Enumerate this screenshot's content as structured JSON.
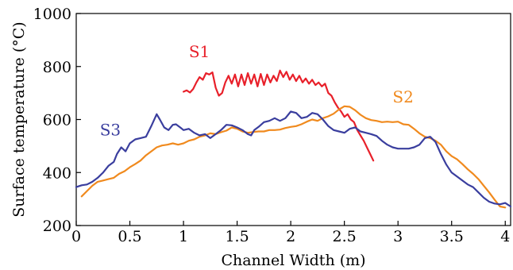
{
  "chart_data": {
    "type": "line",
    "xlabel": "Channel Width (m)",
    "ylabel": "Surface temperature (°C)",
    "xlim": [
      0,
      4.05
    ],
    "ylim": [
      200,
      1000
    ],
    "xticks": [
      0,
      0.5,
      1,
      1.5,
      2,
      2.5,
      3,
      3.5,
      4
    ],
    "xtick_labels": [
      "0",
      "0.5",
      "1",
      "1.5",
      "2",
      "2.5",
      "3",
      "3.5",
      "4"
    ],
    "yticks": [
      200,
      400,
      600,
      800,
      1000
    ],
    "ytick_labels": [
      "200",
      "400",
      "600",
      "800",
      "1000"
    ],
    "grid": false,
    "legend": "labels placed next to each series",
    "series": [
      {
        "name": "S1",
        "color": "#e8202a",
        "label_anchor": [
          1.05,
          835
        ],
        "points": [
          [
            1.0,
            705
          ],
          [
            1.03,
            710
          ],
          [
            1.06,
            702
          ],
          [
            1.09,
            715
          ],
          [
            1.12,
            740
          ],
          [
            1.15,
            760
          ],
          [
            1.18,
            750
          ],
          [
            1.21,
            775
          ],
          [
            1.24,
            770
          ],
          [
            1.27,
            778
          ],
          [
            1.3,
            720
          ],
          [
            1.33,
            690
          ],
          [
            1.36,
            700
          ],
          [
            1.39,
            740
          ],
          [
            1.42,
            765
          ],
          [
            1.45,
            735
          ],
          [
            1.48,
            770
          ],
          [
            1.51,
            725
          ],
          [
            1.54,
            770
          ],
          [
            1.57,
            730
          ],
          [
            1.6,
            775
          ],
          [
            1.63,
            735
          ],
          [
            1.66,
            770
          ],
          [
            1.69,
            725
          ],
          [
            1.72,
            772
          ],
          [
            1.75,
            730
          ],
          [
            1.78,
            770
          ],
          [
            1.81,
            740
          ],
          [
            1.84,
            765
          ],
          [
            1.87,
            745
          ],
          [
            1.9,
            785
          ],
          [
            1.93,
            760
          ],
          [
            1.96,
            780
          ],
          [
            1.99,
            750
          ],
          [
            2.02,
            770
          ],
          [
            2.05,
            745
          ],
          [
            2.08,
            765
          ],
          [
            2.11,
            740
          ],
          [
            2.14,
            755
          ],
          [
            2.17,
            735
          ],
          [
            2.2,
            750
          ],
          [
            2.23,
            730
          ],
          [
            2.26,
            740
          ],
          [
            2.29,
            725
          ],
          [
            2.32,
            735
          ],
          [
            2.35,
            700
          ],
          [
            2.38,
            690
          ],
          [
            2.41,
            665
          ],
          [
            2.44,
            645
          ],
          [
            2.47,
            630
          ],
          [
            2.5,
            610
          ],
          [
            2.53,
            620
          ],
          [
            2.56,
            600
          ],
          [
            2.59,
            590
          ],
          [
            2.62,
            560
          ],
          [
            2.65,
            540
          ],
          [
            2.68,
            520
          ],
          [
            2.71,
            495
          ],
          [
            2.74,
            470
          ],
          [
            2.77,
            445
          ]
        ]
      },
      {
        "name": "S2",
        "color": "#f08a1e",
        "label_anchor": [
          2.95,
          665
        ],
        "points": [
          [
            0.05,
            310
          ],
          [
            0.1,
            330
          ],
          [
            0.15,
            350
          ],
          [
            0.2,
            365
          ],
          [
            0.25,
            370
          ],
          [
            0.3,
            375
          ],
          [
            0.35,
            380
          ],
          [
            0.4,
            395
          ],
          [
            0.45,
            405
          ],
          [
            0.5,
            420
          ],
          [
            0.55,
            432
          ],
          [
            0.6,
            445
          ],
          [
            0.65,
            465
          ],
          [
            0.7,
            480
          ],
          [
            0.75,
            495
          ],
          [
            0.8,
            502
          ],
          [
            0.85,
            505
          ],
          [
            0.9,
            510
          ],
          [
            0.95,
            505
          ],
          [
            1.0,
            510
          ],
          [
            1.05,
            520
          ],
          [
            1.1,
            525
          ],
          [
            1.15,
            535
          ],
          [
            1.2,
            540
          ],
          [
            1.25,
            548
          ],
          [
            1.3,
            545
          ],
          [
            1.35,
            552
          ],
          [
            1.4,
            558
          ],
          [
            1.45,
            570
          ],
          [
            1.5,
            565
          ],
          [
            1.55,
            555
          ],
          [
            1.6,
            550
          ],
          [
            1.65,
            553
          ],
          [
            1.7,
            555
          ],
          [
            1.75,
            555
          ],
          [
            1.8,
            560
          ],
          [
            1.85,
            560
          ],
          [
            1.9,
            562
          ],
          [
            1.95,
            568
          ],
          [
            2.0,
            572
          ],
          [
            2.05,
            575
          ],
          [
            2.1,
            582
          ],
          [
            2.15,
            592
          ],
          [
            2.2,
            600
          ],
          [
            2.25,
            595
          ],
          [
            2.3,
            605
          ],
          [
            2.35,
            612
          ],
          [
            2.4,
            622
          ],
          [
            2.45,
            638
          ],
          [
            2.5,
            650
          ],
          [
            2.55,
            648
          ],
          [
            2.6,
            635
          ],
          [
            2.65,
            618
          ],
          [
            2.7,
            605
          ],
          [
            2.75,
            598
          ],
          [
            2.8,
            595
          ],
          [
            2.85,
            590
          ],
          [
            2.9,
            592
          ],
          [
            2.95,
            590
          ],
          [
            3.0,
            592
          ],
          [
            3.05,
            582
          ],
          [
            3.1,
            580
          ],
          [
            3.15,
            565
          ],
          [
            3.2,
            548
          ],
          [
            3.25,
            535
          ],
          [
            3.3,
            530
          ],
          [
            3.35,
            520
          ],
          [
            3.4,
            505
          ],
          [
            3.45,
            480
          ],
          [
            3.5,
            462
          ],
          [
            3.55,
            450
          ],
          [
            3.6,
            432
          ],
          [
            3.65,
            412
          ],
          [
            3.7,
            395
          ],
          [
            3.75,
            375
          ],
          [
            3.8,
            350
          ],
          [
            3.85,
            325
          ],
          [
            3.9,
            298
          ],
          [
            3.95,
            272
          ],
          [
            4.0,
            268
          ]
        ]
      },
      {
        "name": "S3",
        "color": "#3a3e9e",
        "label_anchor": [
          0.22,
          540
        ],
        "points": [
          [
            0.0,
            345
          ],
          [
            0.05,
            352
          ],
          [
            0.1,
            355
          ],
          [
            0.15,
            365
          ],
          [
            0.2,
            380
          ],
          [
            0.25,
            400
          ],
          [
            0.3,
            425
          ],
          [
            0.35,
            440
          ],
          [
            0.38,
            470
          ],
          [
            0.42,
            495
          ],
          [
            0.46,
            480
          ],
          [
            0.5,
            510
          ],
          [
            0.55,
            525
          ],
          [
            0.6,
            530
          ],
          [
            0.65,
            535
          ],
          [
            0.7,
            575
          ],
          [
            0.75,
            620
          ],
          [
            0.78,
            600
          ],
          [
            0.82,
            570
          ],
          [
            0.86,
            560
          ],
          [
            0.9,
            580
          ],
          [
            0.93,
            582
          ],
          [
            0.97,
            570
          ],
          [
            1.0,
            560
          ],
          [
            1.05,
            565
          ],
          [
            1.1,
            550
          ],
          [
            1.15,
            540
          ],
          [
            1.2,
            545
          ],
          [
            1.25,
            530
          ],
          [
            1.3,
            545
          ],
          [
            1.35,
            560
          ],
          [
            1.4,
            580
          ],
          [
            1.45,
            578
          ],
          [
            1.5,
            570
          ],
          [
            1.55,
            560
          ],
          [
            1.6,
            545
          ],
          [
            1.63,
            540
          ],
          [
            1.66,
            560
          ],
          [
            1.7,
            572
          ],
          [
            1.75,
            590
          ],
          [
            1.8,
            595
          ],
          [
            1.85,
            605
          ],
          [
            1.9,
            595
          ],
          [
            1.95,
            605
          ],
          [
            2.0,
            630
          ],
          [
            2.05,
            625
          ],
          [
            2.1,
            605
          ],
          [
            2.15,
            610
          ],
          [
            2.2,
            625
          ],
          [
            2.25,
            620
          ],
          [
            2.3,
            600
          ],
          [
            2.35,
            575
          ],
          [
            2.4,
            560
          ],
          [
            2.45,
            555
          ],
          [
            2.5,
            550
          ],
          [
            2.55,
            565
          ],
          [
            2.6,
            570
          ],
          [
            2.65,
            555
          ],
          [
            2.7,
            550
          ],
          [
            2.75,
            545
          ],
          [
            2.8,
            538
          ],
          [
            2.85,
            520
          ],
          [
            2.9,
            505
          ],
          [
            2.95,
            495
          ],
          [
            3.0,
            490
          ],
          [
            3.05,
            490
          ],
          [
            3.1,
            490
          ],
          [
            3.15,
            495
          ],
          [
            3.2,
            505
          ],
          [
            3.25,
            530
          ],
          [
            3.3,
            535
          ],
          [
            3.35,
            515
          ],
          [
            3.4,
            470
          ],
          [
            3.45,
            430
          ],
          [
            3.5,
            400
          ],
          [
            3.55,
            385
          ],
          [
            3.6,
            370
          ],
          [
            3.65,
            355
          ],
          [
            3.7,
            345
          ],
          [
            3.75,
            325
          ],
          [
            3.8,
            305
          ],
          [
            3.85,
            290
          ],
          [
            3.9,
            283
          ],
          [
            3.95,
            280
          ],
          [
            4.0,
            285
          ],
          [
            4.05,
            272
          ]
        ]
      }
    ]
  }
}
